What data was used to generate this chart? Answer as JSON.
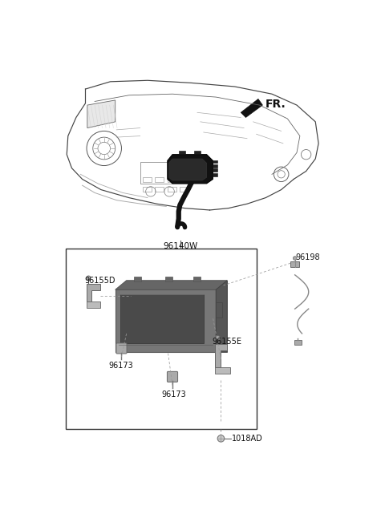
{
  "bg_color": "#ffffff",
  "fig_width": 4.8,
  "fig_height": 6.56,
  "dpi": 100,
  "label_FR": "FR.",
  "label_96140W": "96140W",
  "label_96155D": "96155D",
  "label_96173a": "96173",
  "label_96173b": "96173",
  "label_96155E": "96155E",
  "label_96198": "96198",
  "label_1018AD": "1018AD",
  "lc": "#555555",
  "dc": "#999999",
  "tc": "#111111"
}
